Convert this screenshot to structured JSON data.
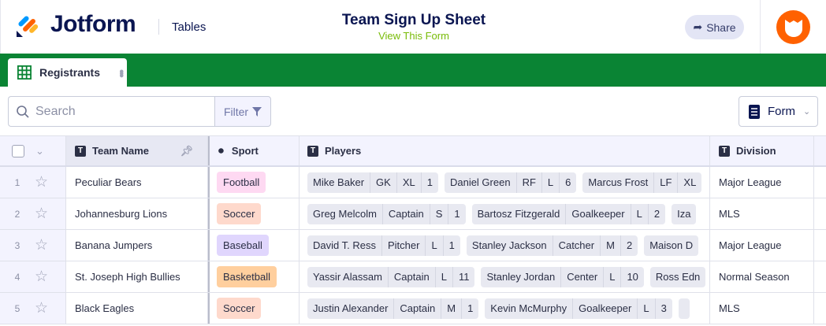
{
  "header": {
    "brand": "Jotform",
    "section": "Tables",
    "title": "Team Sign Up Sheet",
    "subtitle": "View This Form",
    "share_label": "Share"
  },
  "tab": {
    "label": "Registrants"
  },
  "toolbar": {
    "search_placeholder": "Search",
    "filter_label": "Filter",
    "form_label": "Form"
  },
  "columns": [
    "Team Name",
    "Sport",
    "Players",
    "Division"
  ],
  "colors": {
    "green": "#0a8434",
    "brand": "#0a1551",
    "accent": "#ff6100"
  },
  "rows": [
    {
      "num": "1",
      "team": "Peculiar Bears",
      "sport": "Football",
      "sport_color": "#fed9f2",
      "division": "Major League",
      "players": [
        [
          "Mike Baker",
          "GK",
          "XL",
          "1"
        ],
        [
          "Daniel Green",
          "RF",
          "L",
          "6"
        ],
        [
          "Marcus Frost",
          "LF",
          "XL"
        ]
      ]
    },
    {
      "num": "2",
      "team": "Johannesburg Lions",
      "sport": "Soccer",
      "sport_color": "#fed9cc",
      "division": "MLS",
      "players": [
        [
          "Greg Melcolm",
          "Captain",
          "S",
          "1"
        ],
        [
          "Bartosz Fitzgerald",
          "Goalkeeper",
          "L",
          "2"
        ],
        [
          "Iza"
        ]
      ]
    },
    {
      "num": "3",
      "team": "Banana Jumpers",
      "sport": "Baseball",
      "sport_color": "#e0d6fd",
      "division": "Major League",
      "players": [
        [
          "David T. Ress",
          "Pitcher",
          "L",
          "1"
        ],
        [
          "Stanley Jackson",
          "Catcher",
          "M",
          "2"
        ],
        [
          "Maison D"
        ]
      ]
    },
    {
      "num": "4",
      "team": "St. Joseph High Bullies",
      "sport": "Basketball",
      "sport_color": "#ffcf9e",
      "division": "Normal Season",
      "players": [
        [
          "Yassir Alassam",
          "Captain",
          "L",
          "11"
        ],
        [
          "Stanley Jordan",
          "Center",
          "L",
          "10"
        ],
        [
          "Ross Edn"
        ]
      ]
    },
    {
      "num": "5",
      "team": "Black Eagles",
      "sport": "Soccer",
      "sport_color": "#fed9cc",
      "division": "MLS",
      "players": [
        [
          "Justin Alexander",
          "Captain",
          "M",
          "1"
        ],
        [
          "Kevin McMurphy",
          "Goalkeeper",
          "L",
          "3"
        ],
        [
          ""
        ]
      ]
    }
  ]
}
